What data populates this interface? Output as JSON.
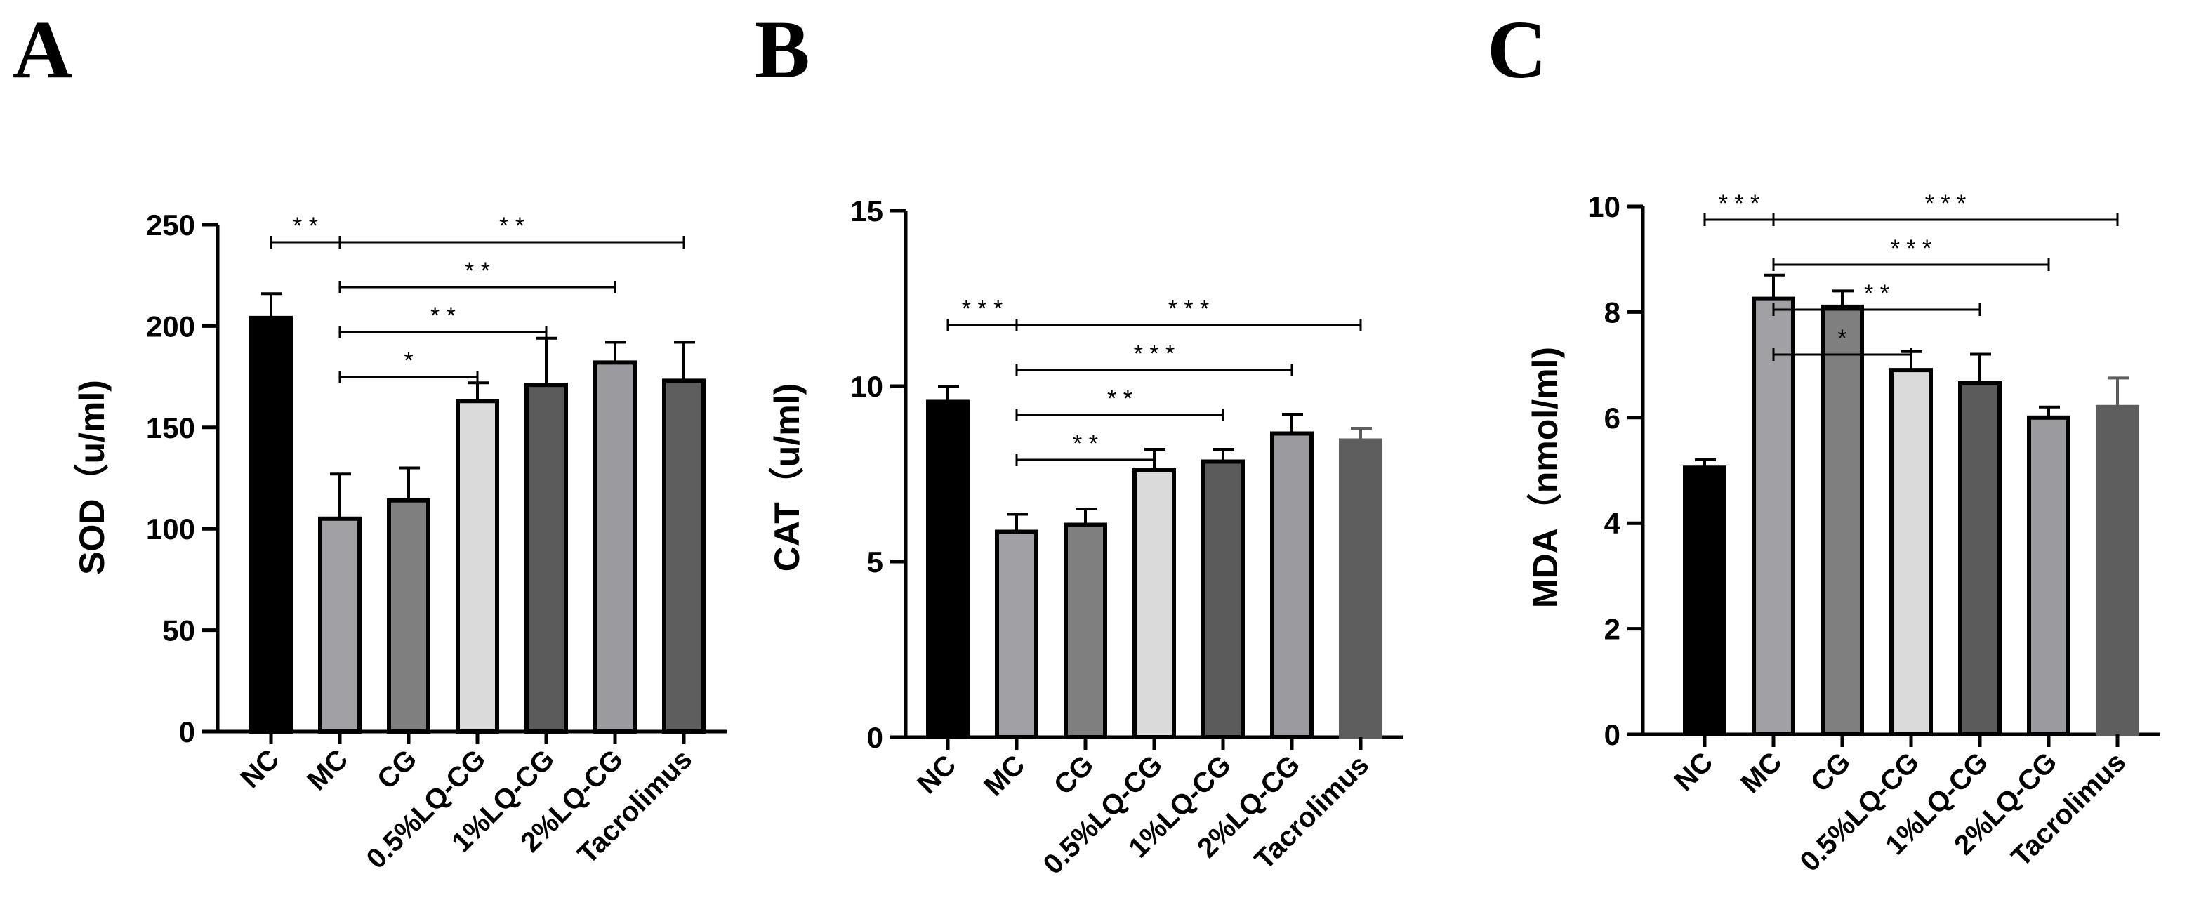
{
  "chart_data": [
    {
      "type": "bar",
      "panel": "A",
      "title": "",
      "xlabel": "",
      "ylabel": "SOD（u/ml)",
      "ylim": [
        0,
        250
      ],
      "yticks": [
        0,
        50,
        100,
        150,
        200,
        250
      ],
      "categories": [
        "NC",
        "MC",
        "CG",
        "0.5%LQ-CG",
        "1%LQ-CG",
        "2%LQ-CG",
        "Tacrolimus"
      ],
      "values": [
        204,
        105,
        114,
        163,
        171,
        182,
        173
      ],
      "errors": [
        12,
        22,
        16,
        9,
        23,
        10,
        19
      ],
      "colors": [
        "#000000",
        "#a1a0a5",
        "#7f7f7f",
        "#dadada",
        "#5b5b5b",
        "#9b9a9f",
        "#5e5e5e"
      ],
      "edge_colors": [
        "#000000",
        "#000000",
        "#000000",
        "#000000",
        "#000000",
        "#000000",
        "#000000"
      ],
      "significance": [
        {
          "from": 0,
          "to": 1,
          "label": "* *",
          "level": 3
        },
        {
          "from": 1,
          "to": 6,
          "label": "* *",
          "level": 3
        },
        {
          "from": 1,
          "to": 5,
          "label": "* *",
          "level": 2
        },
        {
          "from": 1,
          "to": 4,
          "label": "* *",
          "level": 1
        },
        {
          "from": 1,
          "to": 3,
          "label": "*",
          "level": 0
        }
      ]
    },
    {
      "type": "bar",
      "panel": "B",
      "title": "",
      "xlabel": "",
      "ylabel": "CAT（u/ml)",
      "ylim": [
        0,
        15
      ],
      "yticks": [
        0,
        5,
        10,
        15
      ],
      "categories": [
        "NC",
        "MC",
        "CG",
        "0.5%LQ-CG",
        "1%LQ-CG",
        "2%LQ-CG",
        "Tacrolimus"
      ],
      "values": [
        9.55,
        5.85,
        6.05,
        7.6,
        7.85,
        8.65,
        8.45
      ],
      "errors": [
        0.45,
        0.5,
        0.45,
        0.6,
        0.35,
        0.55,
        0.35
      ],
      "colors": [
        "#000000",
        "#a1a0a5",
        "#7f7f7f",
        "#dadada",
        "#5b5b5b",
        "#9b9a9f",
        "#5e5e5e"
      ],
      "edge_colors": [
        "#000000",
        "#000000",
        "#000000",
        "#000000",
        "#000000",
        "#000000",
        "#5e5e5e"
      ],
      "significance": [
        {
          "from": 0,
          "to": 1,
          "label": "* * *",
          "level": 3
        },
        {
          "from": 1,
          "to": 6,
          "label": "* * *",
          "level": 3
        },
        {
          "from": 1,
          "to": 5,
          "label": "* * *",
          "level": 2
        },
        {
          "from": 1,
          "to": 4,
          "label": "* *",
          "level": 1
        },
        {
          "from": 1,
          "to": 3,
          "label": "* *",
          "level": 0
        }
      ]
    },
    {
      "type": "bar",
      "panel": "C",
      "title": "",
      "xlabel": "",
      "ylabel": "MDA（nmol/ml)",
      "ylim": [
        0,
        10
      ],
      "yticks": [
        0,
        2,
        4,
        6,
        8,
        10
      ],
      "categories": [
        "NC",
        "MC",
        "CG",
        "0.5%LQ-CG",
        "1%LQ-CG",
        "2%LQ-CG",
        "Tacrolimus"
      ],
      "values": [
        5.05,
        8.25,
        8.1,
        6.9,
        6.65,
        6.0,
        6.2
      ],
      "errors": [
        0.15,
        0.45,
        0.3,
        0.35,
        0.55,
        0.2,
        0.55
      ],
      "colors": [
        "#000000",
        "#a1a0a5",
        "#7f7f7f",
        "#dadada",
        "#5b5b5b",
        "#9b9a9f",
        "#5e5e5e"
      ],
      "edge_colors": [
        "#000000",
        "#000000",
        "#000000",
        "#000000",
        "#000000",
        "#000000",
        "#5e5e5e"
      ],
      "significance": [
        {
          "from": 0,
          "to": 1,
          "label": "* * *",
          "level": 3
        },
        {
          "from": 1,
          "to": 6,
          "label": "* * *",
          "level": 3
        },
        {
          "from": 1,
          "to": 5,
          "label": "* * *",
          "level": 2
        },
        {
          "from": 1,
          "to": 4,
          "label": "* *",
          "level": 1
        },
        {
          "from": 1,
          "to": 3,
          "label": "*",
          "level": 0
        }
      ]
    }
  ]
}
